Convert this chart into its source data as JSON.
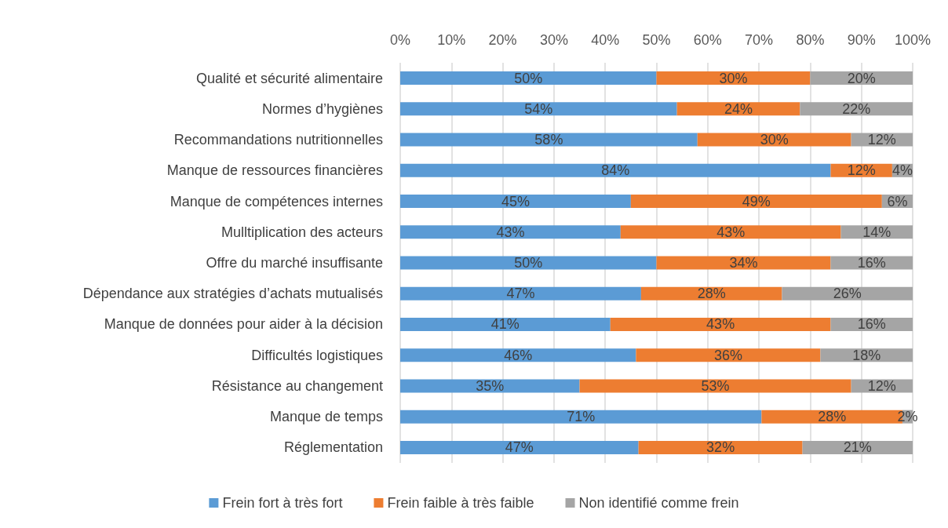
{
  "chart_data": {
    "type": "bar",
    "orientation": "horizontal",
    "stacked": true,
    "categories": [
      "Qualité et sécurité alimentaire",
      "Normes d’hygiènes",
      "Recommandations nutritionnelles",
      "Manque de ressources financières",
      "Manque de compétences internes",
      "Mulltiplication des acteurs",
      "Offre du marché insuffisante",
      "Dépendance aux stratégies d’achats mutualisés",
      "Manque de données pour aider à la décision",
      "Difficultés logistiques",
      "Résistance au changement",
      "Manque de temps",
      "Réglementation"
    ],
    "series": [
      {
        "name": "Frein fort à très fort",
        "color": "#5b9bd5",
        "values": [
          50,
          54,
          58,
          84,
          45,
          43,
          50,
          47,
          41,
          46,
          35,
          70.5,
          46.5
        ],
        "value_labels": [
          "50%",
          "54%",
          "58%",
          "84%",
          "45%",
          "43%",
          "50%",
          "47%",
          "41%",
          "46%",
          "35%",
          "71%",
          "47%"
        ]
      },
      {
        "name": "Frein faible à très faible",
        "color": "#ed7d31",
        "values": [
          30,
          24,
          30,
          12,
          49,
          43,
          34,
          27.5,
          43,
          36,
          53,
          27.5,
          32
        ],
        "value_labels": [
          "30%",
          "24%",
          "30%",
          "12%",
          "49%",
          "43%",
          "34%",
          "28%",
          "43%",
          "36%",
          "53%",
          "28%",
          "32%"
        ]
      },
      {
        "name": "Non identifié comme frein",
        "color": "#a5a5a5",
        "values": [
          20,
          22,
          12,
          4,
          6,
          14,
          16,
          25.5,
          16,
          18,
          12,
          2,
          21.5
        ],
        "value_labels": [
          "20%",
          "22%",
          "12%",
          "4%",
          "6%",
          "14%",
          "16%",
          "26%",
          "16%",
          "18%",
          "12%",
          "2%",
          "21%"
        ]
      }
    ],
    "xlim": [
      0,
      100
    ],
    "xticks": [
      {
        "value": 0,
        "label": "0%"
      },
      {
        "value": 10,
        "label": "10%"
      },
      {
        "value": 20,
        "label": "20%"
      },
      {
        "value": 30,
        "label": "30%"
      },
      {
        "value": 40,
        "label": "40%"
      },
      {
        "value": 50,
        "label": "50%"
      },
      {
        "value": 60,
        "label": "60%"
      },
      {
        "value": 70,
        "label": "70%"
      },
      {
        "value": 80,
        "label": "80%"
      },
      {
        "value": 90,
        "label": "90%"
      },
      {
        "value": 100,
        "label": "100%"
      }
    ],
    "grid": "x",
    "legend": "bottom"
  }
}
